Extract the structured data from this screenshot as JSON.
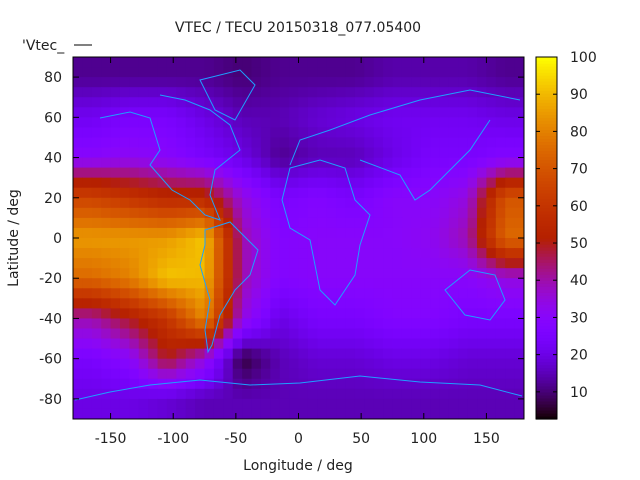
{
  "chart_data": {
    "type": "heatmap",
    "title": "VTEC / TECU 20150318_077.05400",
    "xlabel": "Longitude / deg",
    "ylabel": "Latitude / deg",
    "key_label": "'Vtec_",
    "xlim": [
      -180,
      180
    ],
    "ylim": [
      -90,
      90
    ],
    "xticks": [
      -150,
      -100,
      -50,
      0,
      50,
      100,
      150
    ],
    "yticks": [
      -80,
      -60,
      -40,
      -20,
      0,
      20,
      40,
      60,
      80
    ],
    "colorbar": {
      "range": [
        2.7,
        100
      ],
      "ticks": [
        10,
        20,
        30,
        40,
        50,
        60,
        70,
        80,
        90,
        100
      ]
    },
    "grid_lon": [
      -165,
      -135,
      -105,
      -75,
      -45,
      -15,
      15,
      45,
      75,
      105,
      135,
      165
    ],
    "grid_lat": [
      80,
      60,
      40,
      20,
      0,
      -20,
      -40,
      -60,
      -80
    ],
    "values": [
      [
        12,
        12,
        12,
        12,
        10,
        12,
        12,
        12,
        14,
        14,
        14,
        12
      ],
      [
        22,
        25,
        25,
        20,
        15,
        15,
        18,
        20,
        22,
        22,
        22,
        20
      ],
      [
        30,
        32,
        30,
        25,
        20,
        12,
        15,
        15,
        20,
        25,
        25,
        28
      ],
      [
        65,
        60,
        55,
        55,
        35,
        25,
        28,
        25,
        30,
        30,
        35,
        70
      ],
      [
        85,
        85,
        85,
        92,
        40,
        28,
        30,
        30,
        30,
        32,
        40,
        75
      ],
      [
        75,
        80,
        92,
        90,
        40,
        28,
        30,
        30,
        30,
        30,
        30,
        35
      ],
      [
        40,
        50,
        60,
        82,
        35,
        20,
        25,
        25,
        28,
        28,
        25,
        25
      ],
      [
        25,
        30,
        50,
        35,
        6,
        15,
        18,
        18,
        20,
        20,
        18,
        18
      ],
      [
        20,
        20,
        18,
        15,
        15,
        15,
        15,
        15,
        15,
        15,
        15,
        15
      ]
    ]
  },
  "colors": {
    "coastline": "#1ea0ff"
  }
}
